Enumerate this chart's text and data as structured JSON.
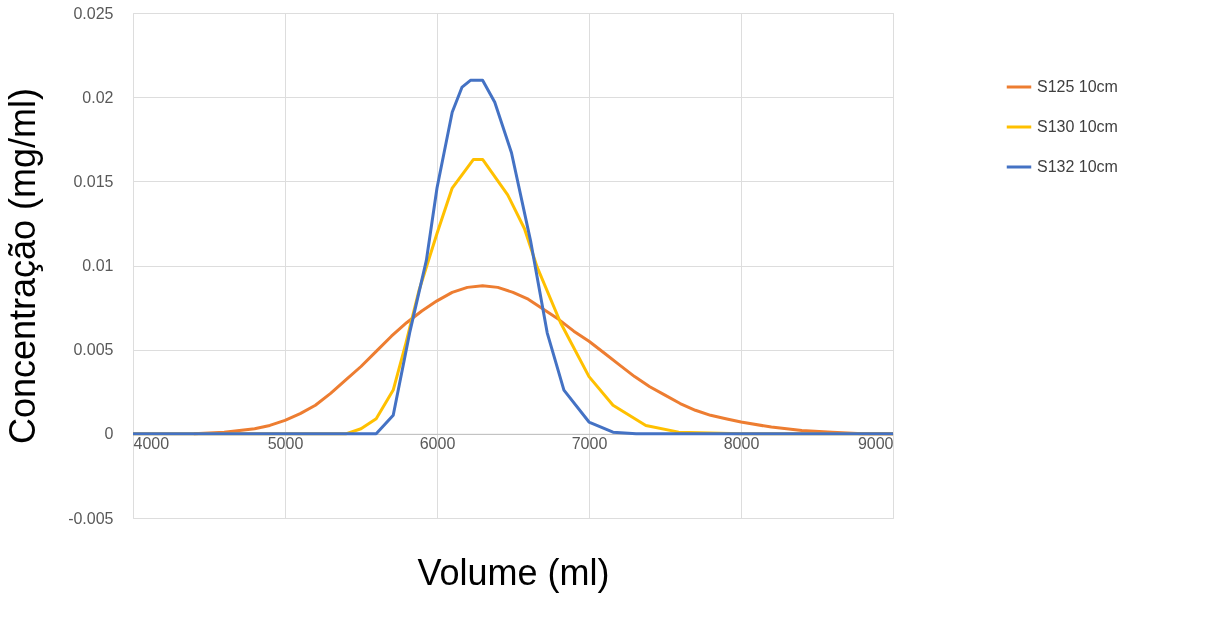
{
  "chart_data": {
    "type": "line",
    "xlabel": "Volume (ml)",
    "ylabel": "Concentração (mg/ml)",
    "xlim": [
      4000,
      9000
    ],
    "xticks": [
      4000,
      5000,
      6000,
      7000,
      8000,
      9000
    ],
    "ylim": [
      -0.005,
      0.025
    ],
    "yticks": [
      -0.005,
      0,
      0.005,
      0.01,
      0.015,
      0.02,
      0.025
    ],
    "grid": true,
    "legend": "right",
    "marker": "none",
    "line_style": "solid",
    "series": [
      {
        "name": "S125 10cm",
        "color": "#ed7d31",
        "x": [
          4400,
          4600,
          4800,
          4900,
          5000,
          5100,
          5200,
          5300,
          5400,
          5500,
          5600,
          5700,
          5800,
          5900,
          6000,
          6100,
          6200,
          6300,
          6400,
          6500,
          6600,
          6700,
          6800,
          6900,
          7000,
          7100,
          7200,
          7300,
          7400,
          7500,
          7600,
          7700,
          7800,
          7900,
          8000,
          8200,
          8400,
          8600,
          8800,
          9000
        ],
        "values": [
          0,
          0.0001,
          0.0003,
          0.0005,
          0.0008,
          0.0012,
          0.0017,
          0.0024,
          0.0032,
          0.004,
          0.0049,
          0.0058,
          0.0066,
          0.0073,
          0.0079,
          0.0084,
          0.0087,
          0.0088,
          0.0087,
          0.0084,
          0.008,
          0.0074,
          0.0068,
          0.0061,
          0.0055,
          0.0048,
          0.0041,
          0.0034,
          0.0028,
          0.0023,
          0.0018,
          0.0014,
          0.0011,
          0.0009,
          0.0007,
          0.0004,
          0.0002,
          0.0001,
          0,
          0
        ]
      },
      {
        "name": "S130 10cm",
        "color": "#ffc000",
        "x": [
          4000,
          5000,
          5400,
          5500,
          5600,
          5712,
          5796,
          5881,
          6000,
          6100,
          6240,
          6300,
          6465,
          6575,
          6659,
          6813,
          7000,
          7158,
          7374,
          7590,
          8000,
          9000
        ],
        "values": [
          0,
          0,
          0,
          0.0003,
          0.0009,
          0.0026,
          0.0054,
          0.0085,
          0.0119,
          0.0146,
          0.0163,
          0.0163,
          0.0142,
          0.0122,
          0.0099,
          0.0066,
          0.0034,
          0.0017,
          0.0005,
          0.0001,
          0,
          0
        ]
      },
      {
        "name": "S132 10cm",
        "color": "#4472c4",
        "x": [
          4000,
          5000,
          5600,
          5712,
          5820,
          5930,
          6000,
          6100,
          6165,
          6220,
          6300,
          6380,
          6490,
          6617,
          6725,
          6835,
          7000,
          7158,
          7310,
          8000,
          9000
        ],
        "values": [
          0,
          0,
          0,
          0.0011,
          0.006,
          0.0103,
          0.0146,
          0.0191,
          0.0206,
          0.021,
          0.021,
          0.0197,
          0.0167,
          0.0114,
          0.006,
          0.0026,
          0.0007,
          0.0001,
          0,
          0,
          0
        ]
      }
    ]
  }
}
